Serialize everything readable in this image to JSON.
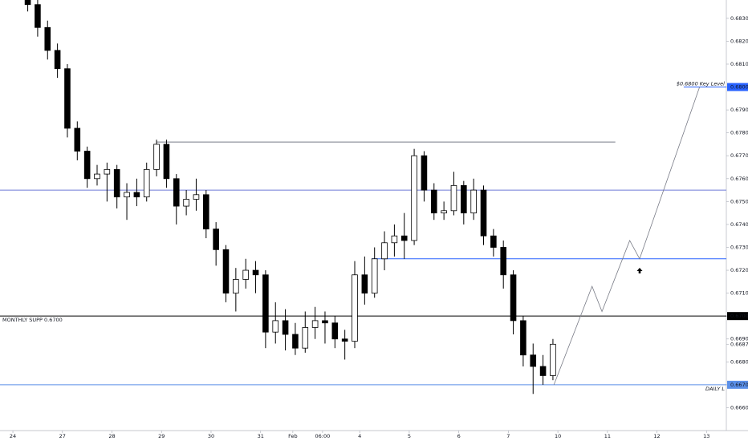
{
  "chart_data": {
    "type": "candlestick",
    "x": [
      0.3,
      0.5,
      0.7,
      0.9,
      1.1,
      1.3,
      1.5,
      1.7,
      1.9,
      2.1,
      2.3,
      2.5,
      2.7,
      2.9,
      3.1,
      3.3,
      3.5,
      3.7,
      3.9,
      4.1,
      4.3,
      4.5,
      4.7,
      4.9,
      5.1,
      5.3,
      5.5,
      5.7,
      5.9,
      6.1,
      6.3,
      6.5,
      6.7,
      6.9,
      7.1,
      7.3,
      7.5,
      7.7,
      7.9,
      8.1,
      8.3,
      8.5,
      8.7,
      8.9,
      9.1,
      9.3,
      9.5,
      9.7,
      9.9,
      10.1,
      10.3,
      10.5,
      10.7,
      10.9
    ],
    "open": [
      0.684,
      0.6836,
      0.6826,
      0.6816,
      0.6808,
      0.6782,
      0.6772,
      0.676,
      0.6762,
      0.6764,
      0.6752,
      0.6754,
      0.6752,
      0.6764,
      0.6775,
      0.676,
      0.6748,
      0.6751,
      0.6753,
      0.6738,
      0.6729,
      0.671,
      0.6716,
      0.672,
      0.6718,
      0.6693,
      0.6698,
      0.6692,
      0.6686,
      0.6695,
      0.6698,
      0.6697,
      0.669,
      0.6689,
      0.6718,
      0.671,
      0.6725,
      0.6732,
      0.6735,
      0.6733,
      0.677,
      0.6755,
      0.6745,
      0.6746,
      0.6757,
      0.6745,
      0.6755,
      0.6735,
      0.673,
      0.6718,
      0.6698,
      0.6683,
      0.6678,
      0.6674
    ],
    "high": [
      0.6842,
      0.6838,
      0.6829,
      0.6819,
      0.681,
      0.6785,
      0.6774,
      0.6766,
      0.6767,
      0.6766,
      0.6758,
      0.676,
      0.6767,
      0.6777,
      0.6777,
      0.6762,
      0.6755,
      0.676,
      0.6755,
      0.6741,
      0.6731,
      0.6721,
      0.6725,
      0.6724,
      0.672,
      0.6706,
      0.6703,
      0.6697,
      0.6702,
      0.6704,
      0.6702,
      0.67,
      0.6694,
      0.6724,
      0.6726,
      0.673,
      0.6737,
      0.674,
      0.6745,
      0.6773,
      0.6772,
      0.6758,
      0.675,
      0.6763,
      0.6759,
      0.676,
      0.6757,
      0.6738,
      0.6733,
      0.672,
      0.67,
      0.6688,
      0.6683,
      0.669
    ],
    "low": [
      0.6833,
      0.6822,
      0.6812,
      0.6804,
      0.6778,
      0.6768,
      0.6756,
      0.6757,
      0.675,
      0.6747,
      0.6742,
      0.6748,
      0.675,
      0.6761,
      0.6756,
      0.674,
      0.6744,
      0.6746,
      0.6734,
      0.6722,
      0.6706,
      0.6702,
      0.6712,
      0.671,
      0.6686,
      0.6688,
      0.6685,
      0.6683,
      0.6684,
      0.669,
      0.6688,
      0.6686,
      0.6681,
      0.6686,
      0.6705,
      0.6708,
      0.672,
      0.6726,
      0.6725,
      0.6731,
      0.675,
      0.6742,
      0.6742,
      0.6744,
      0.674,
      0.6742,
      0.6731,
      0.6726,
      0.6712,
      0.6692,
      0.6678,
      0.6666,
      0.667,
      0.6672
    ],
    "close": [
      0.6836,
      0.6826,
      0.6816,
      0.6808,
      0.6782,
      0.6772,
      0.676,
      0.6762,
      0.6764,
      0.6752,
      0.6754,
      0.6752,
      0.6764,
      0.6775,
      0.676,
      0.6748,
      0.6751,
      0.6753,
      0.6738,
      0.6729,
      0.671,
      0.6716,
      0.672,
      0.6718,
      0.6693,
      0.6698,
      0.6692,
      0.6686,
      0.6695,
      0.6698,
      0.6697,
      0.669,
      0.6689,
      0.6718,
      0.671,
      0.6725,
      0.6732,
      0.6735,
      0.6733,
      0.677,
      0.6755,
      0.6745,
      0.6746,
      0.6757,
      0.6745,
      0.6755,
      0.6735,
      0.673,
      0.6718,
      0.6698,
      0.6683,
      0.6678,
      0.6674,
      0.66877
    ],
    "up_color": "#ffffff",
    "down_color": "#000000",
    "wick_color": "#000000",
    "xlim": [
      -0.26,
      14.4
    ],
    "ylim": [
      0.665,
      0.6838
    ],
    "xticks": [
      {
        "value": 0,
        "label": "24"
      },
      {
        "value": 1,
        "label": "27"
      },
      {
        "value": 2,
        "label": "28"
      },
      {
        "value": 3,
        "label": "29"
      },
      {
        "value": 4,
        "label": "30"
      },
      {
        "value": 5,
        "label": "31"
      },
      {
        "value": 5.65,
        "label": "Feb"
      },
      {
        "value": 6.25,
        "label": "06:00"
      },
      {
        "value": 7,
        "label": "4"
      },
      {
        "value": 8,
        "label": "5"
      },
      {
        "value": 9,
        "label": "6"
      },
      {
        "value": 10,
        "label": "7"
      },
      {
        "value": 11,
        "label": "10"
      },
      {
        "value": 12,
        "label": "11"
      },
      {
        "value": 13,
        "label": "12"
      },
      {
        "value": 14,
        "label": "13"
      }
    ],
    "yticks": [
      {
        "value": 0.683,
        "label": "0.68300"
      },
      {
        "value": 0.682,
        "label": "0.68200"
      },
      {
        "value": 0.681,
        "label": "0.68100"
      },
      {
        "value": 0.68,
        "label": "0.68000"
      },
      {
        "value": 0.679,
        "label": "0.67900"
      },
      {
        "value": 0.678,
        "label": "0.67800"
      },
      {
        "value": 0.677,
        "label": "0.67700"
      },
      {
        "value": 0.676,
        "label": "0.67600"
      },
      {
        "value": 0.675,
        "label": "0.67500"
      },
      {
        "value": 0.674,
        "label": "0.67400"
      },
      {
        "value": 0.673,
        "label": "0.67300"
      },
      {
        "value": 0.672,
        "label": "0.67200"
      },
      {
        "value": 0.671,
        "label": "0.67100"
      },
      {
        "value": 0.67,
        "label": "0.67000"
      },
      {
        "value": 0.669,
        "label": "0.66900"
      },
      {
        "value": 0.66877,
        "label": "0.66877"
      },
      {
        "value": 0.668,
        "label": "0.66800"
      },
      {
        "value": 0.667,
        "label": "0.66700"
      },
      {
        "value": 0.666,
        "label": "0.66600"
      }
    ],
    "hlines": [
      {
        "value": 0.6776,
        "x0": 2.9,
        "x1": 12.16,
        "color": "#787b86"
      },
      {
        "value": 0.6755,
        "color": "#6f7ad8"
      },
      {
        "value": 0.6725,
        "x0": 7.24,
        "color": "#2962ff"
      },
      {
        "value": 0.67,
        "color": "#000000",
        "label": "MONTHLY SUPP 0.6700",
        "tag": true
      },
      {
        "value": 0.667,
        "color": "#5a8fe8",
        "label": "DAILY L",
        "tag": true
      },
      {
        "value": 0.68,
        "x0": 13.54,
        "color": "#2962ff",
        "label": "$0.6800 Key Level",
        "tag": true
      }
    ],
    "projection": {
      "x": [
        10.92,
        11.69,
        11.89,
        12.45,
        12.65,
        13.86
      ],
      "y": [
        0.667,
        0.6713,
        0.6702,
        0.6733,
        0.6725,
        0.68
      ],
      "color": "#787b86"
    }
  }
}
